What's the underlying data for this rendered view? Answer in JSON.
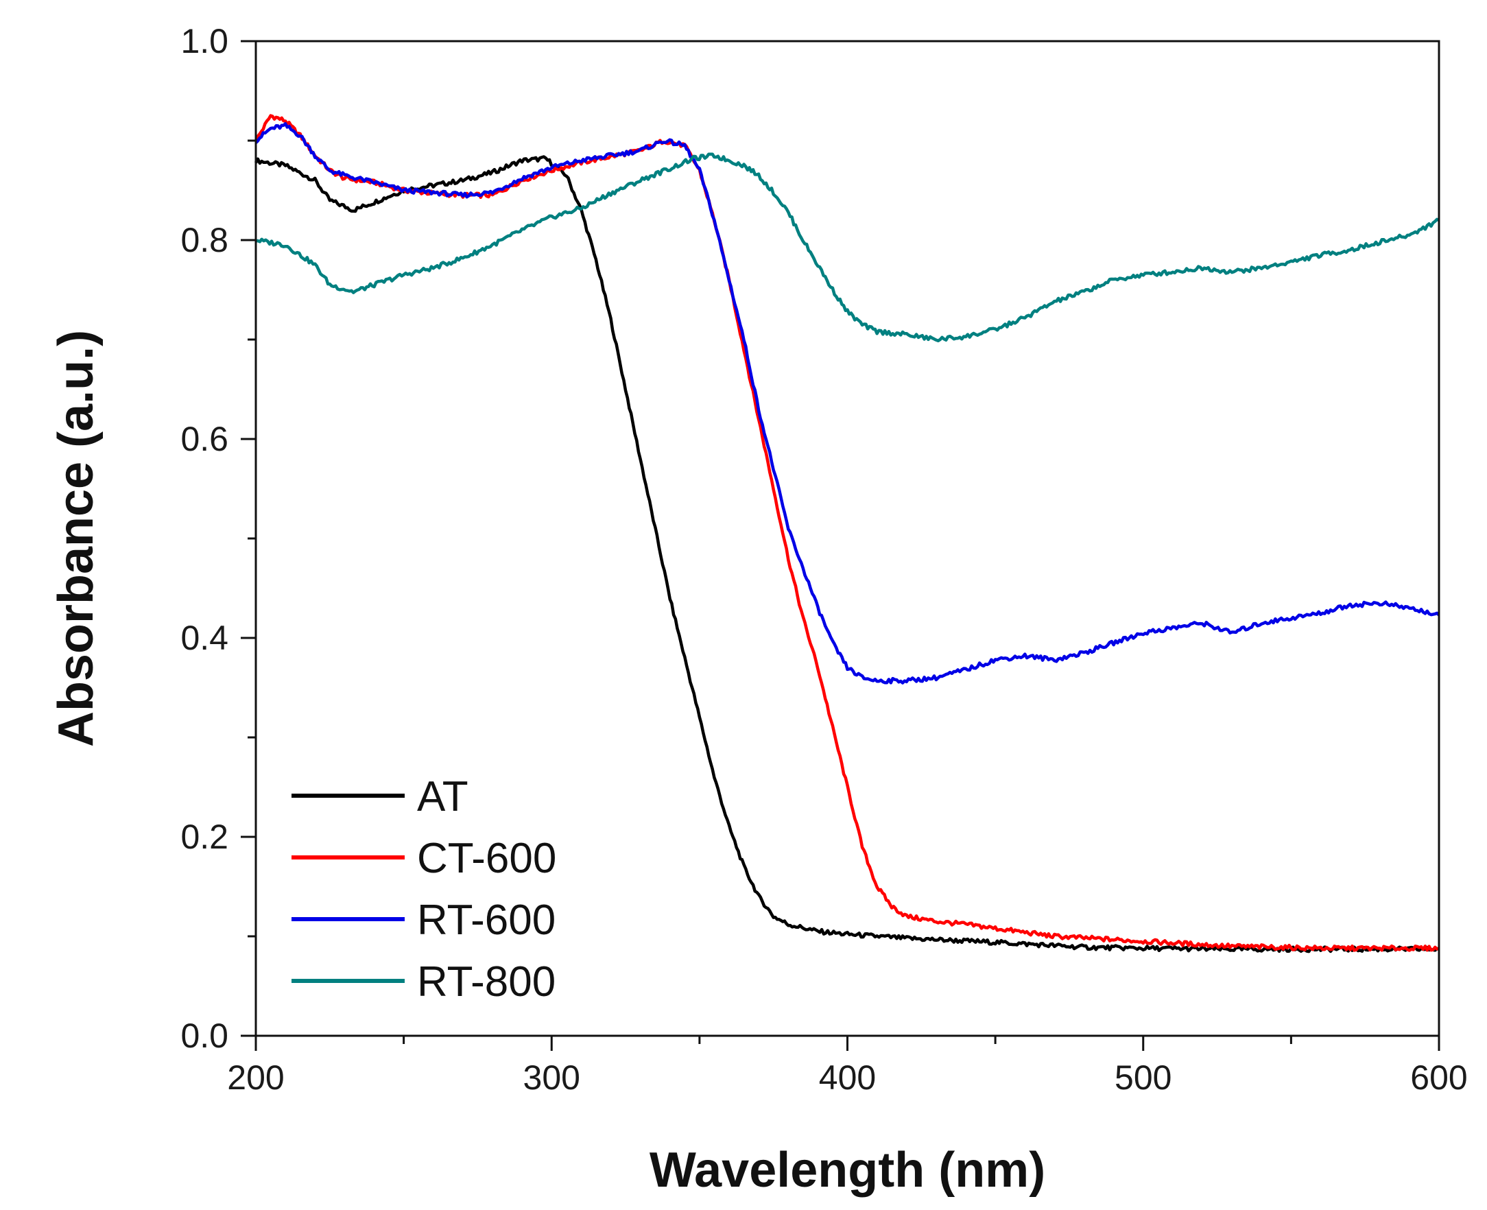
{
  "chart_data": {
    "type": "line",
    "title": "",
    "xlabel": "Wavelength (nm)",
    "ylabel": "Absorbance (a.u.)",
    "xlim": [
      200,
      600
    ],
    "ylim": [
      0.0,
      1.0
    ],
    "x_ticks": [
      200,
      300,
      400,
      500,
      600
    ],
    "x_tick_labels": [
      "200",
      "300",
      "400",
      "500",
      "600"
    ],
    "y_ticks": [
      0.0,
      0.2,
      0.4,
      0.6,
      0.8,
      1.0
    ],
    "y_tick_labels": [
      "0.0",
      "0.2",
      "0.4",
      "0.6",
      "0.8",
      "1.0"
    ],
    "grid": false,
    "legend_position": "bottom-left",
    "series": [
      {
        "name": "AT",
        "color": "#000000",
        "x": [
          200,
          210,
          220,
          225,
          233,
          240,
          250,
          260,
          270,
          280,
          290,
          298,
          305,
          310,
          315,
          320,
          325,
          330,
          335,
          340,
          345,
          350,
          355,
          360,
          365,
          370,
          375,
          380,
          390,
          400,
          420,
          450,
          480,
          500,
          530,
          560,
          600
        ],
        "y": [
          0.88,
          0.875,
          0.86,
          0.84,
          0.83,
          0.838,
          0.85,
          0.855,
          0.86,
          0.868,
          0.88,
          0.882,
          0.865,
          0.83,
          0.78,
          0.72,
          0.65,
          0.58,
          0.51,
          0.44,
          0.38,
          0.32,
          0.26,
          0.21,
          0.17,
          0.14,
          0.12,
          0.112,
          0.105,
          0.102,
          0.098,
          0.094,
          0.089,
          0.088,
          0.087,
          0.087,
          0.087
        ]
      },
      {
        "name": "CT-600",
        "color": "#ff0000",
        "x": [
          200,
          205,
          210,
          215,
          220,
          225,
          230,
          240,
          250,
          260,
          270,
          280,
          290,
          300,
          310,
          320,
          330,
          338,
          345,
          350,
          355,
          360,
          365,
          370,
          375,
          380,
          385,
          390,
          395,
          400,
          405,
          410,
          415,
          420,
          430,
          440,
          450,
          470,
          500,
          530,
          560,
          600
        ],
        "y": [
          0.9,
          0.925,
          0.92,
          0.905,
          0.885,
          0.87,
          0.862,
          0.858,
          0.85,
          0.847,
          0.845,
          0.845,
          0.86,
          0.87,
          0.878,
          0.884,
          0.89,
          0.9,
          0.895,
          0.87,
          0.82,
          0.76,
          0.69,
          0.62,
          0.55,
          0.48,
          0.42,
          0.37,
          0.31,
          0.25,
          0.19,
          0.15,
          0.13,
          0.12,
          0.115,
          0.112,
          0.108,
          0.1,
          0.095,
          0.09,
          0.088,
          0.088
        ]
      },
      {
        "name": "RT-600",
        "color": "#0000e6",
        "x": [
          200,
          205,
          210,
          215,
          220,
          225,
          230,
          240,
          250,
          260,
          270,
          280,
          290,
          300,
          310,
          320,
          330,
          338,
          345,
          350,
          355,
          360,
          365,
          370,
          375,
          380,
          385,
          390,
          395,
          400,
          405,
          410,
          420,
          430,
          440,
          450,
          460,
          470,
          480,
          490,
          500,
          510,
          520,
          530,
          540,
          550,
          560,
          570,
          580,
          590,
          600
        ],
        "y": [
          0.9,
          0.912,
          0.915,
          0.905,
          0.885,
          0.87,
          0.865,
          0.858,
          0.85,
          0.848,
          0.845,
          0.848,
          0.862,
          0.873,
          0.88,
          0.885,
          0.89,
          0.9,
          0.895,
          0.87,
          0.82,
          0.76,
          0.7,
          0.63,
          0.57,
          0.51,
          0.47,
          0.43,
          0.395,
          0.37,
          0.36,
          0.357,
          0.357,
          0.36,
          0.368,
          0.378,
          0.382,
          0.378,
          0.385,
          0.395,
          0.405,
          0.41,
          0.415,
          0.405,
          0.415,
          0.42,
          0.425,
          0.433,
          0.435,
          0.43,
          0.423
        ]
      },
      {
        "name": "RT-800",
        "color": "#008080",
        "x": [
          200,
          210,
          220,
          225,
          233,
          240,
          250,
          260,
          270,
          280,
          290,
          300,
          310,
          320,
          330,
          340,
          348,
          355,
          360,
          365,
          370,
          375,
          380,
          385,
          390,
          395,
          400,
          405,
          410,
          420,
          430,
          440,
          450,
          460,
          470,
          480,
          490,
          500,
          510,
          520,
          530,
          540,
          550,
          560,
          570,
          580,
          590,
          600
        ],
        "y": [
          0.8,
          0.795,
          0.775,
          0.755,
          0.748,
          0.755,
          0.765,
          0.772,
          0.782,
          0.795,
          0.81,
          0.823,
          0.832,
          0.847,
          0.86,
          0.872,
          0.882,
          0.885,
          0.88,
          0.875,
          0.865,
          0.848,
          0.828,
          0.8,
          0.775,
          0.75,
          0.728,
          0.715,
          0.708,
          0.705,
          0.7,
          0.703,
          0.71,
          0.722,
          0.738,
          0.748,
          0.76,
          0.765,
          0.768,
          0.772,
          0.768,
          0.772,
          0.778,
          0.785,
          0.79,
          0.798,
          0.805,
          0.82
        ]
      }
    ]
  }
}
